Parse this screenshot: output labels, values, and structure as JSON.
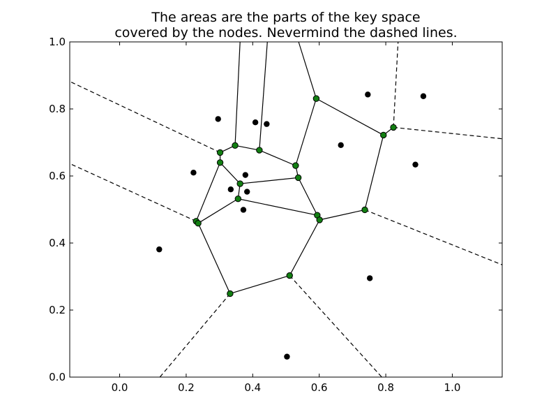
{
  "chart_data": {
    "type": "scatter",
    "title_line1": "The areas are the parts of the key space",
    "title_line2": "covered by the nodes. Nevermind the dashed lines.",
    "xlabel": "",
    "ylabel": "",
    "xlim": [
      -0.15,
      1.15
    ],
    "ylim": [
      0.0,
      1.0
    ],
    "grid": false,
    "xticks": [
      {
        "value": 0.0,
        "label": "0.0"
      },
      {
        "value": 0.2,
        "label": "0.2"
      },
      {
        "value": 0.4,
        "label": "0.4"
      },
      {
        "value": 0.6,
        "label": "0.6"
      },
      {
        "value": 0.8,
        "label": "0.8"
      },
      {
        "value": 1.0,
        "label": "1.0"
      }
    ],
    "yticks": [
      {
        "value": 0.0,
        "label": "0.0"
      },
      {
        "value": 0.2,
        "label": "0.2"
      },
      {
        "value": 0.4,
        "label": "0.4"
      },
      {
        "value": 0.6,
        "label": "0.6"
      },
      {
        "value": 0.8,
        "label": "0.8"
      },
      {
        "value": 1.0,
        "label": "1.0"
      }
    ],
    "nodes": [
      [
        0.296,
        0.77
      ],
      [
        0.408,
        0.76
      ],
      [
        0.442,
        0.755
      ],
      [
        0.746,
        0.843
      ],
      [
        0.913,
        0.838
      ],
      [
        0.665,
        0.692
      ],
      [
        0.222,
        0.61
      ],
      [
        0.378,
        0.603
      ],
      [
        0.889,
        0.634
      ],
      [
        0.334,
        0.56
      ],
      [
        0.383,
        0.553
      ],
      [
        0.372,
        0.499
      ],
      [
        0.119,
        0.381
      ],
      [
        0.752,
        0.295
      ],
      [
        0.503,
        0.061
      ]
    ],
    "vertices": [
      [
        0.347,
        0.691
      ],
      [
        0.42,
        0.677
      ],
      [
        0.302,
        0.67
      ],
      [
        0.302,
        0.64
      ],
      [
        0.529,
        0.631
      ],
      [
        0.537,
        0.595
      ],
      [
        0.362,
        0.577
      ],
      [
        0.356,
        0.532
      ],
      [
        0.594,
        0.483
      ],
      [
        0.601,
        0.469
      ],
      [
        0.23,
        0.465
      ],
      [
        0.236,
        0.459
      ],
      [
        0.591,
        0.831
      ],
      [
        0.793,
        0.722
      ],
      [
        0.823,
        0.745
      ],
      [
        0.737,
        0.499
      ],
      [
        0.511,
        0.303
      ],
      [
        0.332,
        0.249
      ]
    ],
    "solid_edges": [
      [
        [
          0.347,
          0.691
        ],
        [
          0.362,
          1.0
        ]
      ],
      [
        [
          0.42,
          0.677
        ],
        [
          0.444,
          1.0
        ]
      ],
      [
        [
          0.591,
          0.831
        ],
        [
          0.538,
          1.0
        ]
      ],
      [
        [
          0.302,
          0.67
        ],
        [
          0.347,
          0.691
        ]
      ],
      [
        [
          0.347,
          0.691
        ],
        [
          0.42,
          0.677
        ]
      ],
      [
        [
          0.42,
          0.677
        ],
        [
          0.529,
          0.631
        ]
      ],
      [
        [
          0.529,
          0.631
        ],
        [
          0.591,
          0.831
        ]
      ],
      [
        [
          0.591,
          0.831
        ],
        [
          0.793,
          0.722
        ]
      ],
      [
        [
          0.793,
          0.722
        ],
        [
          0.823,
          0.745
        ]
      ],
      [
        [
          0.529,
          0.631
        ],
        [
          0.537,
          0.595
        ]
      ],
      [
        [
          0.302,
          0.67
        ],
        [
          0.302,
          0.64
        ]
      ],
      [
        [
          0.302,
          0.64
        ],
        [
          0.362,
          0.577
        ]
      ],
      [
        [
          0.362,
          0.577
        ],
        [
          0.537,
          0.595
        ]
      ],
      [
        [
          0.362,
          0.577
        ],
        [
          0.356,
          0.532
        ]
      ],
      [
        [
          0.302,
          0.64
        ],
        [
          0.23,
          0.465
        ]
      ],
      [
        [
          0.23,
          0.465
        ],
        [
          0.236,
          0.459
        ]
      ],
      [
        [
          0.236,
          0.459
        ],
        [
          0.356,
          0.532
        ]
      ],
      [
        [
          0.356,
          0.532
        ],
        [
          0.594,
          0.483
        ]
      ],
      [
        [
          0.537,
          0.595
        ],
        [
          0.594,
          0.483
        ]
      ],
      [
        [
          0.594,
          0.483
        ],
        [
          0.601,
          0.469
        ]
      ],
      [
        [
          0.601,
          0.469
        ],
        [
          0.737,
          0.499
        ]
      ],
      [
        [
          0.737,
          0.499
        ],
        [
          0.793,
          0.722
        ]
      ],
      [
        [
          0.601,
          0.469
        ],
        [
          0.511,
          0.303
        ]
      ],
      [
        [
          0.511,
          0.303
        ],
        [
          0.332,
          0.249
        ]
      ],
      [
        [
          0.332,
          0.249
        ],
        [
          0.236,
          0.459
        ]
      ]
    ],
    "dashed_edges": [
      [
        [
          0.823,
          0.745
        ],
        [
          0.837,
          1.0
        ]
      ],
      [
        [
          0.823,
          0.745
        ],
        [
          1.15,
          0.711
        ]
      ],
      [
        [
          0.302,
          0.67
        ],
        [
          -0.15,
          0.882
        ]
      ],
      [
        [
          0.23,
          0.465
        ],
        [
          -0.15,
          0.637
        ]
      ],
      [
        [
          0.737,
          0.499
        ],
        [
          1.15,
          0.335
        ]
      ],
      [
        [
          0.511,
          0.303
        ],
        [
          0.788,
          0.0
        ]
      ],
      [
        [
          0.332,
          0.249
        ],
        [
          0.121,
          0.0
        ]
      ]
    ],
    "colors": {
      "node": "#000000",
      "vertex_fill": "#127f12",
      "vertex_stroke": "#000000",
      "edge": "#000000",
      "axes": "#000000",
      "background": "#ffffff"
    }
  }
}
